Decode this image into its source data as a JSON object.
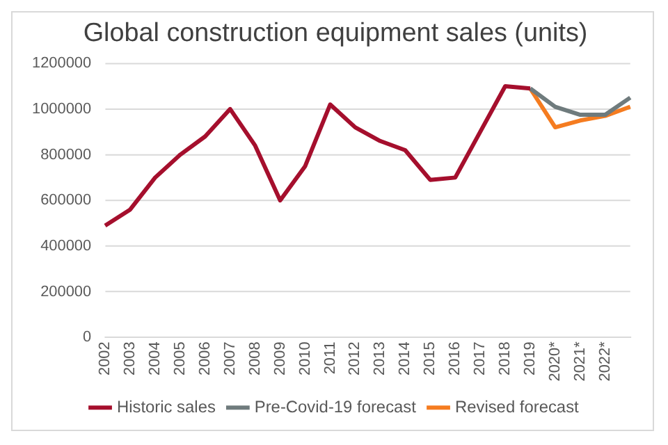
{
  "chart_data": {
    "type": "line",
    "title": "Global construction equipment sales (units)",
    "categories": [
      "2002",
      "2003",
      "2004",
      "2005",
      "2006",
      "2007",
      "2008",
      "2009",
      "2010",
      "2011",
      "2012",
      "2013",
      "2014",
      "2015",
      "2016",
      "2017",
      "2018",
      "2019",
      "2020*",
      "2021*",
      "2022*",
      null
    ],
    "series": [
      {
        "name": "Historic sales",
        "color": "#a50f2d",
        "values": [
          490000,
          560000,
          700000,
          800000,
          880000,
          1000000,
          840000,
          600000,
          750000,
          1020000,
          920000,
          860000,
          820000,
          690000,
          700000,
          900000,
          1100000,
          1090000,
          null,
          null,
          null,
          null
        ]
      },
      {
        "name": "Pre-Covid-19 forecast",
        "color": "#6f7b7d",
        "values": [
          null,
          null,
          null,
          null,
          null,
          null,
          null,
          null,
          null,
          null,
          null,
          null,
          null,
          null,
          null,
          null,
          null,
          1090000,
          1010000,
          975000,
          975000,
          1050000
        ]
      },
      {
        "name": "Revised forecast",
        "color": "#f57c20",
        "values": [
          null,
          null,
          null,
          null,
          null,
          null,
          null,
          null,
          null,
          null,
          null,
          null,
          null,
          null,
          null,
          null,
          null,
          1090000,
          920000,
          950000,
          970000,
          1010000
        ]
      }
    ],
    "ylim": [
      0,
      1200000
    ],
    "yticks": [
      0,
      200000,
      400000,
      600000,
      800000,
      1000000,
      1200000
    ],
    "grid": "y",
    "legend": "bottom",
    "marker": "none",
    "line_style": "solid"
  }
}
